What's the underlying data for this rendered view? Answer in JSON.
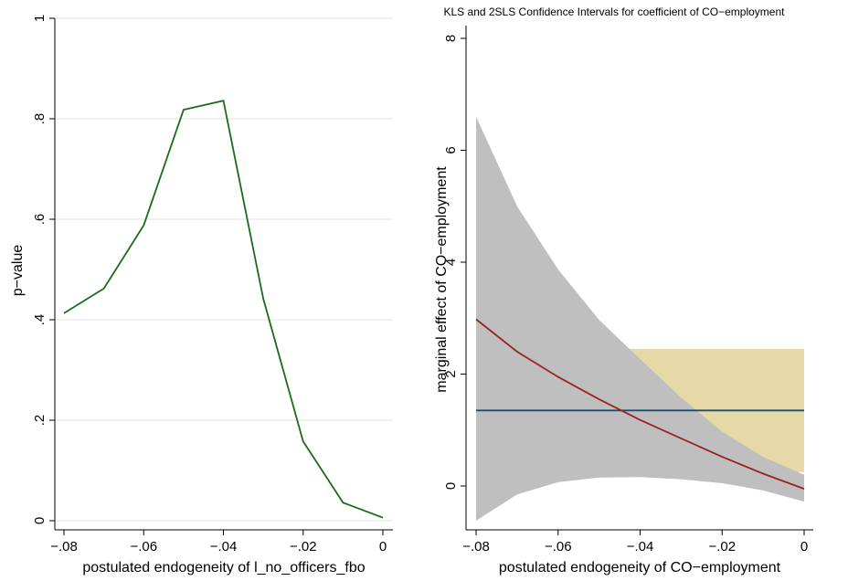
{
  "chart_data": [
    {
      "type": "line",
      "title": "",
      "xlabel": "postulated endogeneity of l_no_officers_fbo",
      "ylabel": "p−value",
      "xlim": [
        -0.08,
        0
      ],
      "ylim": [
        0,
        1
      ],
      "grid": true,
      "x_ticks": [
        -0.08,
        -0.06,
        -0.04,
        -0.02,
        0
      ],
      "x_tick_labels": [
        "−.08",
        "−.06",
        "−.04",
        "−.02",
        "0"
      ],
      "y_ticks": [
        0,
        0.2,
        0.4,
        0.6,
        0.8,
        1
      ],
      "y_tick_labels": [
        "0",
        ".2",
        ".4",
        ".6",
        ".8",
        "1"
      ],
      "series": [
        {
          "color": "#1a6b1a",
          "x": [
            -0.08,
            -0.07,
            -0.06,
            -0.05,
            -0.04,
            -0.03,
            -0.02,
            -0.01,
            0
          ],
          "values": [
            0.413,
            0.462,
            0.588,
            0.818,
            0.836,
            0.442,
            0.158,
            0.036,
            0.006
          ]
        }
      ]
    },
    {
      "type": "area",
      "title": "KLS and 2SLS Confidence Intervals for coefficient of CO−employment",
      "xlabel": "postulated endogeneity of CO−employment",
      "ylabel": "marginal effect of CO−employment",
      "xlim": [
        -0.08,
        0
      ],
      "ylim": [
        -0.65,
        8
      ],
      "grid": false,
      "x_ticks": [
        -0.08,
        -0.06,
        -0.04,
        -0.02,
        0
      ],
      "x_tick_labels": [
        "−.08",
        "−.06",
        "−.04",
        "−.02",
        "0"
      ],
      "y_ticks": [
        0,
        2,
        4,
        6,
        8
      ],
      "y_tick_labels": [
        "0",
        "2",
        "4",
        "6",
        "8"
      ],
      "series": [
        {
          "kind": "band",
          "color": "#e6d8a7",
          "x": [
            -0.08,
            -0.07,
            -0.06,
            -0.05,
            -0.04,
            -0.03,
            -0.02,
            -0.01,
            0
          ],
          "lower": [
            0.25,
            0.25,
            0.25,
            0.25,
            0.25,
            0.25,
            0.25,
            0.25,
            0.25
          ],
          "upper": [
            2.45,
            2.45,
            2.45,
            2.45,
            2.45,
            2.45,
            2.45,
            2.45,
            2.45
          ]
        },
        {
          "kind": "band",
          "color": "#bfbfbf",
          "x": [
            -0.08,
            -0.07,
            -0.06,
            -0.05,
            -0.04,
            -0.03,
            -0.02,
            -0.01,
            0
          ],
          "lower": [
            -0.62,
            -0.15,
            0.07,
            0.15,
            0.16,
            0.12,
            0.05,
            -0.08,
            -0.28
          ],
          "upper": [
            6.6,
            5.0,
            3.87,
            2.97,
            2.27,
            1.58,
            0.97,
            0.52,
            0.2
          ]
        },
        {
          "kind": "line",
          "color": "#1f4e79",
          "x": [
            -0.08,
            0
          ],
          "values": [
            1.35,
            1.35
          ]
        },
        {
          "kind": "line",
          "color": "#9b2226",
          "x": [
            -0.08,
            -0.07,
            -0.06,
            -0.05,
            -0.04,
            -0.03,
            -0.02,
            -0.01,
            0
          ],
          "values": [
            2.98,
            2.4,
            1.95,
            1.55,
            1.18,
            0.85,
            0.52,
            0.22,
            -0.05
          ]
        }
      ]
    }
  ]
}
